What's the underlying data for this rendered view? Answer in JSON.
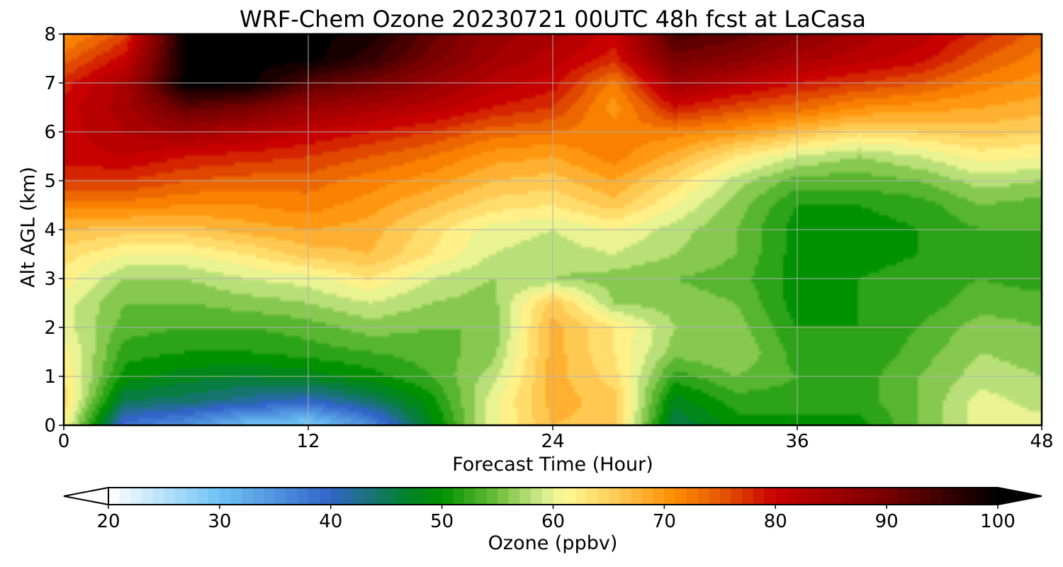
{
  "chart_data": {
    "type": "heatmap",
    "title": "WRF-Chem Ozone  20230721 00UTC 48h fcst at LaCasa",
    "xlabel": "Forecast Time (Hour)",
    "ylabel": "Alt AGL (km)",
    "colorbar_label": "Ozone  (ppbv)",
    "xlim": [
      0,
      48
    ],
    "ylim": [
      0,
      8
    ],
    "xticks": [
      0,
      12,
      24,
      36,
      48
    ],
    "yticks": [
      0,
      1,
      2,
      3,
      4,
      5,
      6,
      7,
      8
    ],
    "colorbar_range": [
      20,
      100
    ],
    "colorbar_ticks": [
      20,
      30,
      40,
      50,
      60,
      70,
      80,
      90,
      100
    ],
    "colorbar_extend": "both",
    "grid": true,
    "x": [
      0,
      3,
      6,
      9,
      12,
      15,
      18,
      21,
      24,
      27,
      30,
      33,
      36,
      39,
      42,
      45,
      48
    ],
    "y": [
      0,
      0.5,
      1,
      1.5,
      2,
      2.5,
      3,
      3.5,
      4,
      4.5,
      5,
      5.5,
      6,
      6.5,
      7,
      7.5,
      8
    ],
    "z": [
      [
        62,
        38,
        35,
        30,
        28,
        35,
        48,
        60,
        67,
        66,
        45,
        50,
        50,
        50,
        55,
        60,
        60
      ],
      [
        64,
        45,
        44,
        42,
        40,
        44,
        50,
        60,
        68,
        66,
        48,
        52,
        52,
        52,
        55,
        60,
        58
      ],
      [
        63,
        50,
        48,
        47,
        48,
        50,
        53,
        58,
        68,
        64,
        52,
        55,
        53,
        52,
        55,
        58,
        57
      ],
      [
        62,
        52,
        51,
        51,
        52,
        53,
        54,
        56,
        68,
        63,
        56,
        57,
        52,
        51,
        54,
        57,
        56
      ],
      [
        60,
        54,
        53,
        53,
        54,
        56,
        55,
        55,
        68,
        63,
        57,
        56,
        51,
        51,
        53,
        56,
        55
      ],
      [
        60,
        55,
        55,
        56,
        57,
        59,
        57,
        56,
        66,
        57,
        56,
        55,
        50,
        51,
        52,
        54,
        54
      ],
      [
        62,
        57,
        57,
        59,
        60,
        63,
        59,
        57,
        57,
        56,
        55,
        54,
        50,
        51,
        52,
        53,
        52
      ],
      [
        64,
        61,
        61,
        63,
        66,
        67,
        63,
        59,
        58,
        59,
        57,
        55,
        50,
        50,
        51,
        52,
        52
      ],
      [
        67,
        66,
        66,
        68,
        69,
        68,
        64,
        60,
        59,
        61,
        58,
        55,
        50,
        50,
        51,
        53,
        53
      ],
      [
        72,
        72,
        71,
        71,
        72,
        70,
        67,
        64,
        63,
        66,
        61,
        56,
        51,
        51,
        52,
        55,
        54
      ],
      [
        77,
        77,
        75,
        74,
        74,
        72,
        70,
        67,
        66,
        69,
        64,
        58,
        54,
        54,
        55,
        58,
        57
      ],
      [
        80,
        81,
        79,
        78,
        77,
        75,
        73,
        70,
        69,
        72,
        68,
        63,
        59,
        57,
        59,
        62,
        61
      ],
      [
        80,
        83,
        85,
        83,
        81,
        79,
        77,
        74,
        73,
        72,
        72,
        70,
        67,
        64,
        65,
        66,
        65
      ],
      [
        80,
        84,
        92,
        90,
        86,
        84,
        82,
        79,
        77,
        70,
        79,
        76,
        74,
        71,
        70,
        69,
        68
      ],
      [
        78,
        84,
        100,
        100,
        93,
        90,
        86,
        82,
        80,
        72,
        85,
        82,
        79,
        77,
        75,
        72,
        70
      ],
      [
        74,
        80,
        100,
        100,
        100,
        96,
        90,
        85,
        82,
        78,
        90,
        88,
        84,
        82,
        80,
        75,
        72
      ],
      [
        70,
        76,
        100,
        100,
        100,
        98,
        92,
        86,
        84,
        80,
        94,
        92,
        88,
        84,
        82,
        78,
        74
      ]
    ]
  }
}
